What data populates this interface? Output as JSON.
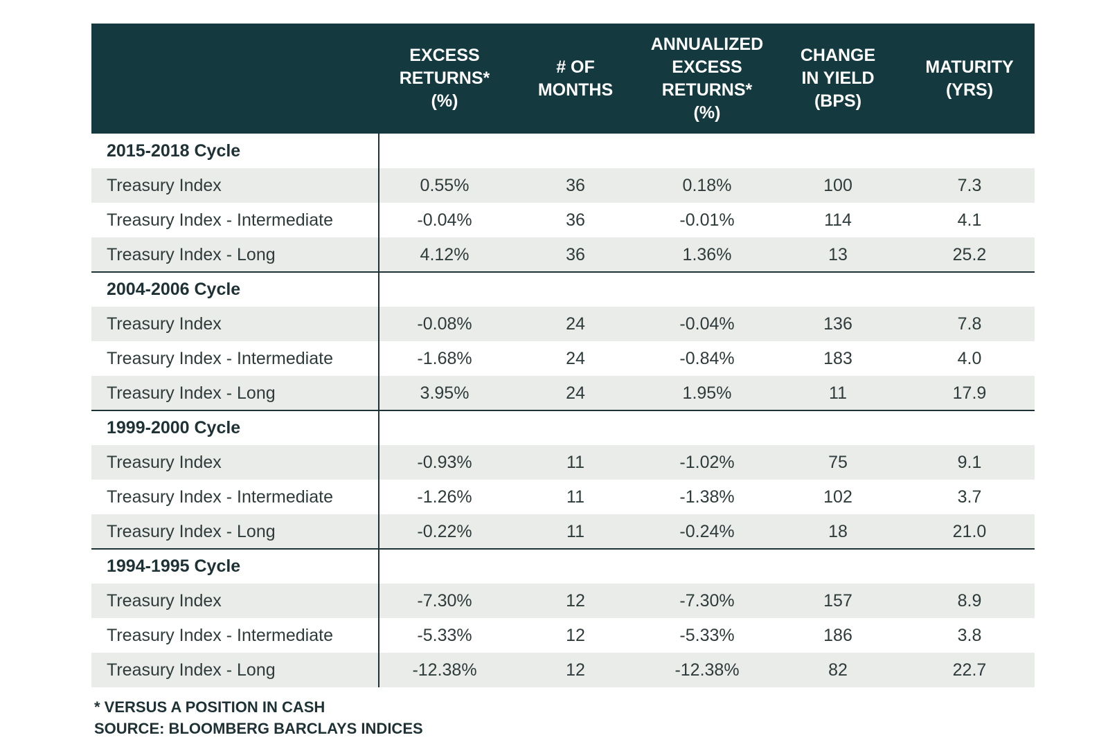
{
  "table": {
    "header": [
      [
        "EXCESS",
        "RETURNS*",
        "(%)"
      ],
      [
        "# OF",
        "MONTHS"
      ],
      [
        "ANNUALIZED",
        "EXCESS",
        "RETURNS*",
        "(%)"
      ],
      [
        "CHANGE",
        "IN YIELD",
        "(BPS)"
      ],
      [
        "MATURITY",
        "(YRS)"
      ]
    ],
    "groups": [
      {
        "title": "2015-2018 Cycle",
        "rows": [
          [
            "Treasury Index",
            "0.55%",
            "36",
            "0.18%",
            "100",
            "7.3"
          ],
          [
            "Treasury Index - Intermediate",
            "-0.04%",
            "36",
            "-0.01%",
            "114",
            "4.1"
          ],
          [
            "Treasury Index - Long",
            "4.12%",
            "36",
            "1.36%",
            "13",
            "25.2"
          ]
        ]
      },
      {
        "title": "2004-2006 Cycle",
        "rows": [
          [
            "Treasury Index",
            "-0.08%",
            "24",
            "-0.04%",
            "136",
            "7.8"
          ],
          [
            "Treasury Index - Intermediate",
            "-1.68%",
            "24",
            "-0.84%",
            "183",
            "4.0"
          ],
          [
            "Treasury Index - Long",
            "3.95%",
            "24",
            "1.95%",
            "11",
            "17.9"
          ]
        ]
      },
      {
        "title": "1999-2000 Cycle",
        "rows": [
          [
            "Treasury Index",
            "-0.93%",
            "11",
            "-1.02%",
            "75",
            "9.1"
          ],
          [
            "Treasury Index - Intermediate",
            "-1.26%",
            "11",
            "-1.38%",
            "102",
            "3.7"
          ],
          [
            "Treasury Index - Long",
            "-0.22%",
            "11",
            "-0.24%",
            "18",
            "21.0"
          ]
        ]
      },
      {
        "title": "1994-1995 Cycle",
        "rows": [
          [
            "Treasury Index",
            "-7.30%",
            "12",
            "-7.30%",
            "157",
            "8.9"
          ],
          [
            "Treasury Index - Intermediate",
            "-5.33%",
            "12",
            "-5.33%",
            "186",
            "3.8"
          ],
          [
            "Treasury Index - Long",
            "-12.38%",
            "12",
            "-12.38%",
            "82",
            "22.7"
          ]
        ]
      }
    ]
  },
  "notes": [
    "* VERSUS A POSITION IN CASH",
    "SOURCE: BLOOMBERG BARCLAYS INDICES"
  ]
}
